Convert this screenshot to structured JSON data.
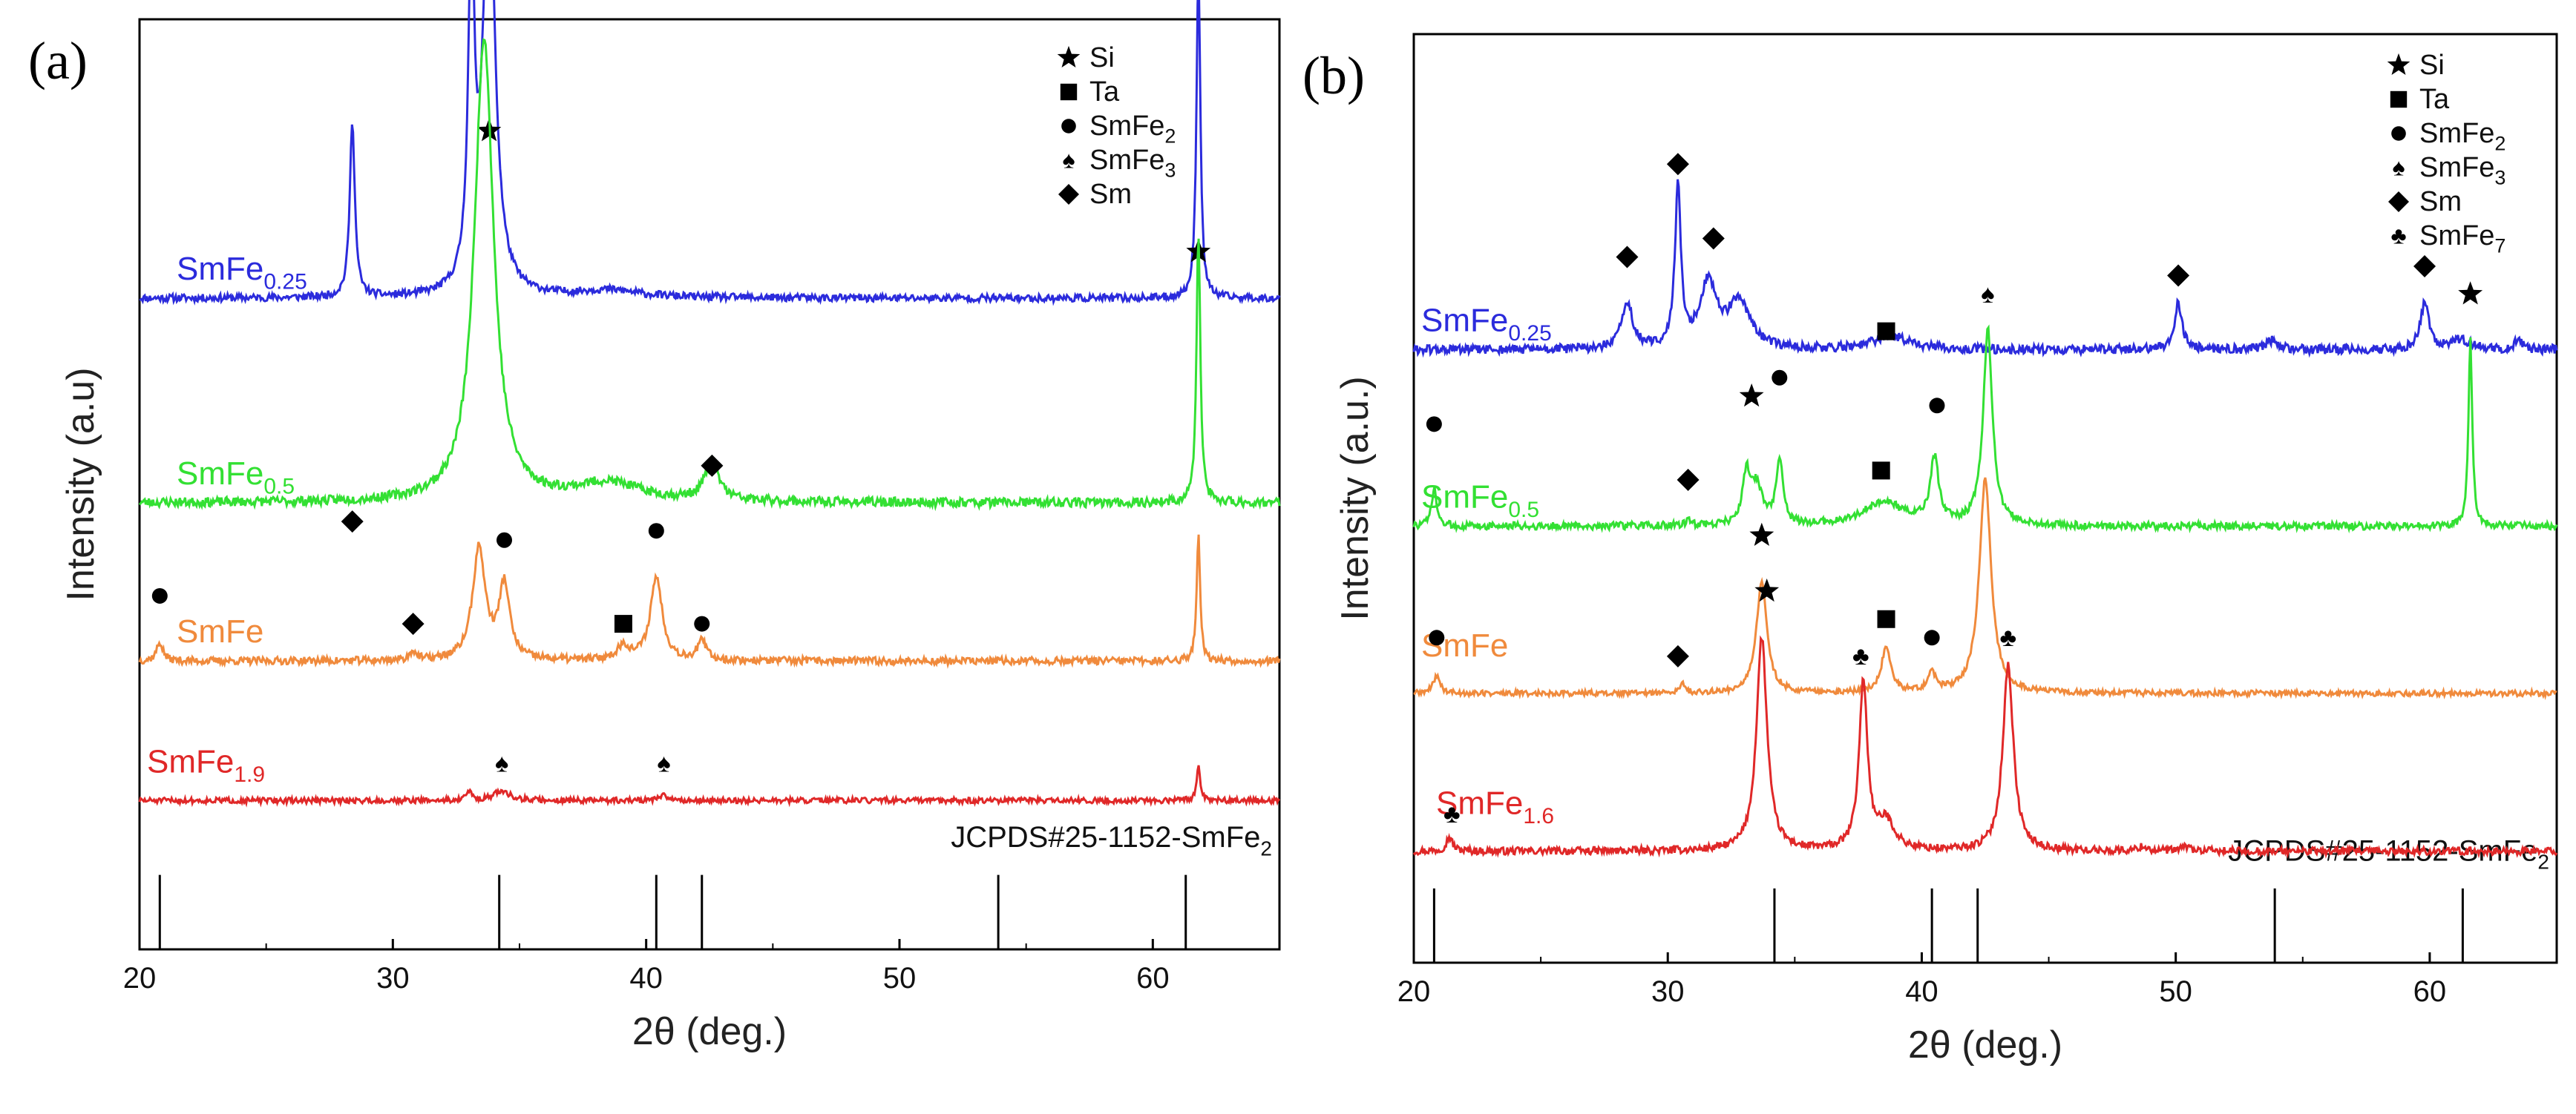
{
  "chart_data": [
    {
      "type": "line",
      "panel_label": "(a)",
      "xlabel": "2θ (deg.)",
      "ylabel": "Intensity (a.u)",
      "xlim": [
        20,
        65
      ],
      "xticks": [
        20,
        30,
        40,
        50,
        60
      ],
      "yticks_shown": false,
      "legend": {
        "placement": "top-right",
        "entries": [
          {
            "marker": "star",
            "main": "Si",
            "sub": ""
          },
          {
            "marker": "square",
            "main": "Ta",
            "sub": ""
          },
          {
            "marker": "circle",
            "main": "SmFe",
            "sub": "2"
          },
          {
            "marker": "spade",
            "main": "SmFe",
            "sub": "3"
          },
          {
            "marker": "diamond",
            "main": "Sm",
            "sub": ""
          }
        ]
      },
      "reference": {
        "main": "JCPDS#25-1152-SmFe",
        "sub": "2",
        "lines": [
          20.8,
          34.2,
          40.4,
          42.2,
          53.9,
          61.3
        ]
      },
      "series": [
        {
          "name_main": "SmFe",
          "name_sub": "0.25",
          "color": "#2b2bdc",
          "baseline": 0.7,
          "noise": 0.004,
          "seed": 11,
          "peaks": [
            {
              "x": 28.4,
              "h": 0.19,
              "w": 0.12
            },
            {
              "x": 33.1,
              "h": 0.35,
              "w": 0.15
            },
            {
              "x": 33.8,
              "h": 0.46,
              "w": 0.28
            },
            {
              "x": 38.5,
              "h": 0.008,
              "w": 1.5
            },
            {
              "x": 61.8,
              "h": 0.36,
              "w": 0.09
            }
          ],
          "markers": [
            {
              "x": 28.4,
              "y": 0.46,
              "type": "diamond"
            },
            {
              "x": 33.8,
              "y": 0.88,
              "type": "star"
            },
            {
              "x": 61.8,
              "y": 0.75,
              "type": "star"
            }
          ]
        },
        {
          "name_main": "SmFe",
          "name_sub": "0.5",
          "color": "#33e033",
          "baseline": 0.48,
          "noise": 0.005,
          "seed": 23,
          "peaks": [
            {
              "x": 33.6,
              "h": 0.5,
              "w": 0.45
            },
            {
              "x": 38.5,
              "h": 0.02,
              "w": 1.6
            },
            {
              "x": 42.6,
              "h": 0.04,
              "w": 0.35
            },
            {
              "x": 61.8,
              "h": 0.29,
              "w": 0.09
            }
          ],
          "markers": [
            {
              "x": 42.6,
              "y": 0.52,
              "type": "diamond"
            }
          ]
        },
        {
          "name_main": "SmFe",
          "name_sub": "",
          "color": "#f08a3c",
          "baseline": 0.31,
          "noise": 0.004,
          "seed": 37,
          "peaks": [
            {
              "x": 20.8,
              "h": 0.02,
              "w": 0.15
            },
            {
              "x": 30.8,
              "h": 0.01,
              "w": 0.15
            },
            {
              "x": 33.4,
              "h": 0.12,
              "w": 0.3
            },
            {
              "x": 34.4,
              "h": 0.08,
              "w": 0.25
            },
            {
              "x": 39.1,
              "h": 0.015,
              "w": 0.3
            },
            {
              "x": 40.4,
              "h": 0.09,
              "w": 0.28
            },
            {
              "x": 42.2,
              "h": 0.02,
              "w": 0.22
            },
            {
              "x": 61.8,
              "h": 0.14,
              "w": 0.08
            }
          ],
          "markers": [
            {
              "x": 20.8,
              "y": 0.38,
              "type": "circle"
            },
            {
              "x": 30.8,
              "y": 0.35,
              "type": "diamond"
            },
            {
              "x": 34.4,
              "y": 0.44,
              "type": "circle"
            },
            {
              "x": 39.1,
              "y": 0.35,
              "type": "square"
            },
            {
              "x": 40.4,
              "y": 0.45,
              "type": "circle"
            },
            {
              "x": 42.2,
              "y": 0.35,
              "type": "circle"
            }
          ]
        },
        {
          "name_main": "SmFe",
          "name_sub": "1.9",
          "color": "#e02828",
          "baseline": 0.16,
          "noise": 0.003,
          "seed": 51,
          "peaks": [
            {
              "x": 33.0,
              "h": 0.01,
              "w": 0.12
            },
            {
              "x": 34.3,
              "h": 0.01,
              "w": 0.4
            },
            {
              "x": 40.7,
              "h": 0.005,
              "w": 0.25
            },
            {
              "x": 61.8,
              "h": 0.04,
              "w": 0.08
            }
          ],
          "markers": [
            {
              "x": 34.3,
              "y": 0.2,
              "type": "spade"
            },
            {
              "x": 40.7,
              "y": 0.2,
              "type": "spade"
            }
          ]
        }
      ]
    },
    {
      "type": "line",
      "panel_label": "(b)",
      "xlabel": "2θ (deg.)",
      "ylabel": "Intensity (a.u.)",
      "xlim": [
        20,
        65
      ],
      "xticks": [
        20,
        30,
        40,
        50,
        60
      ],
      "yticks_shown": false,
      "legend": {
        "placement": "top-right",
        "entries": [
          {
            "marker": "star",
            "main": "Si",
            "sub": ""
          },
          {
            "marker": "square",
            "main": "Ta",
            "sub": ""
          },
          {
            "marker": "circle",
            "main": "SmFe",
            "sub": "2"
          },
          {
            "marker": "spade",
            "main": "SmFe",
            "sub": "3"
          },
          {
            "marker": "diamond",
            "main": "Sm",
            "sub": ""
          },
          {
            "marker": "club",
            "main": "SmFe",
            "sub": "7"
          }
        ]
      },
      "reference": {
        "main": "JCPDS#25-1152-SmFe",
        "sub": "2",
        "lines": [
          20.8,
          34.2,
          40.4,
          42.2,
          53.9,
          61.3
        ]
      },
      "series": [
        {
          "name_main": "SmFe",
          "name_sub": "0.25",
          "color": "#2b2bdc",
          "baseline": 0.66,
          "noise": 0.005,
          "seed": 61,
          "peaks": [
            {
              "x": 28.4,
              "h": 0.05,
              "w": 0.25
            },
            {
              "x": 30.4,
              "h": 0.17,
              "w": 0.14
            },
            {
              "x": 31.6,
              "h": 0.07,
              "w": 0.4
            },
            {
              "x": 32.8,
              "h": 0.05,
              "w": 0.5
            },
            {
              "x": 38.8,
              "h": 0.015,
              "w": 0.8
            },
            {
              "x": 50.1,
              "h": 0.05,
              "w": 0.18
            },
            {
              "x": 53.8,
              "h": 0.01,
              "w": 0.3
            },
            {
              "x": 59.8,
              "h": 0.05,
              "w": 0.2
            },
            {
              "x": 61.2,
              "h": 0.01,
              "w": 0.5
            },
            {
              "x": 63.5,
              "h": 0.01,
              "w": 0.2
            }
          ],
          "markers": [
            {
              "x": 28.4,
              "y": 0.76,
              "type": "diamond"
            },
            {
              "x": 30.4,
              "y": 0.86,
              "type": "diamond"
            },
            {
              "x": 31.8,
              "y": 0.78,
              "type": "diamond"
            },
            {
              "x": 38.6,
              "y": 0.68,
              "type": "square"
            },
            {
              "x": 50.1,
              "y": 0.74,
              "type": "diamond"
            },
            {
              "x": 59.8,
              "y": 0.75,
              "type": "diamond"
            }
          ]
        },
        {
          "name_main": "SmFe",
          "name_sub": "0.5",
          "color": "#33e033",
          "baseline": 0.47,
          "noise": 0.004,
          "seed": 73,
          "peaks": [
            {
              "x": 20.8,
              "h": 0.04,
              "w": 0.12
            },
            {
              "x": 30.8,
              "h": 0.005,
              "w": 0.15
            },
            {
              "x": 33.1,
              "h": 0.05,
              "w": 0.18
            },
            {
              "x": 33.5,
              "h": 0.04,
              "w": 0.3
            },
            {
              "x": 34.4,
              "h": 0.07,
              "w": 0.15
            },
            {
              "x": 38.5,
              "h": 0.025,
              "w": 1.0
            },
            {
              "x": 40.5,
              "h": 0.07,
              "w": 0.2
            },
            {
              "x": 42.6,
              "h": 0.21,
              "w": 0.22
            },
            {
              "x": 61.6,
              "h": 0.2,
              "w": 0.09
            }
          ],
          "markers": [
            {
              "x": 20.8,
              "y": 0.58,
              "type": "circle"
            },
            {
              "x": 30.8,
              "y": 0.52,
              "type": "diamond"
            },
            {
              "x": 33.3,
              "y": 0.61,
              "type": "star"
            },
            {
              "x": 34.4,
              "y": 0.63,
              "type": "circle"
            },
            {
              "x": 38.4,
              "y": 0.53,
              "type": "square"
            },
            {
              "x": 40.6,
              "y": 0.6,
              "type": "circle"
            },
            {
              "x": 42.6,
              "y": 0.72,
              "type": "spade"
            },
            {
              "x": 61.6,
              "y": 0.72,
              "type": "star"
            }
          ]
        },
        {
          "name_main": "SmFe",
          "name_sub": "",
          "color": "#f08a3c",
          "baseline": 0.29,
          "noise": 0.003,
          "seed": 89,
          "peaks": [
            {
              "x": 20.9,
              "h": 0.02,
              "w": 0.15
            },
            {
              "x": 30.6,
              "h": 0.01,
              "w": 0.12
            },
            {
              "x": 33.7,
              "h": 0.12,
              "w": 0.25
            },
            {
              "x": 38.6,
              "h": 0.05,
              "w": 0.22
            },
            {
              "x": 40.4,
              "h": 0.02,
              "w": 0.18
            },
            {
              "x": 42.5,
              "h": 0.23,
              "w": 0.28
            }
          ],
          "markers": [
            {
              "x": 20.9,
              "y": 0.35,
              "type": "circle"
            },
            {
              "x": 30.4,
              "y": 0.33,
              "type": "diamond"
            },
            {
              "x": 33.7,
              "y": 0.46,
              "type": "star"
            },
            {
              "x": 38.6,
              "y": 0.37,
              "type": "square"
            },
            {
              "x": 40.4,
              "y": 0.35,
              "type": "circle"
            }
          ]
        },
        {
          "name_main": "SmFe",
          "name_sub": "1.6",
          "color": "#e02828",
          "baseline": 0.12,
          "noise": 0.004,
          "seed": 97,
          "peaks": [
            {
              "x": 21.4,
              "h": 0.015,
              "w": 0.15
            },
            {
              "x": 33.7,
              "h": 0.23,
              "w": 0.25
            },
            {
              "x": 37.7,
              "h": 0.18,
              "w": 0.2
            },
            {
              "x": 38.6,
              "h": 0.03,
              "w": 0.4
            },
            {
              "x": 43.4,
              "h": 0.2,
              "w": 0.25
            },
            {
              "x": 48.7,
              "h": 0.005,
              "w": 0.2
            },
            {
              "x": 50.4,
              "h": 0.005,
              "w": 0.2
            }
          ],
          "markers": [
            {
              "x": 21.5,
              "y": 0.16,
              "type": "club"
            },
            {
              "x": 33.9,
              "y": 0.4,
              "type": "star"
            },
            {
              "x": 37.6,
              "y": 0.33,
              "type": "club"
            },
            {
              "x": 43.4,
              "y": 0.35,
              "type": "club"
            }
          ]
        }
      ]
    }
  ]
}
